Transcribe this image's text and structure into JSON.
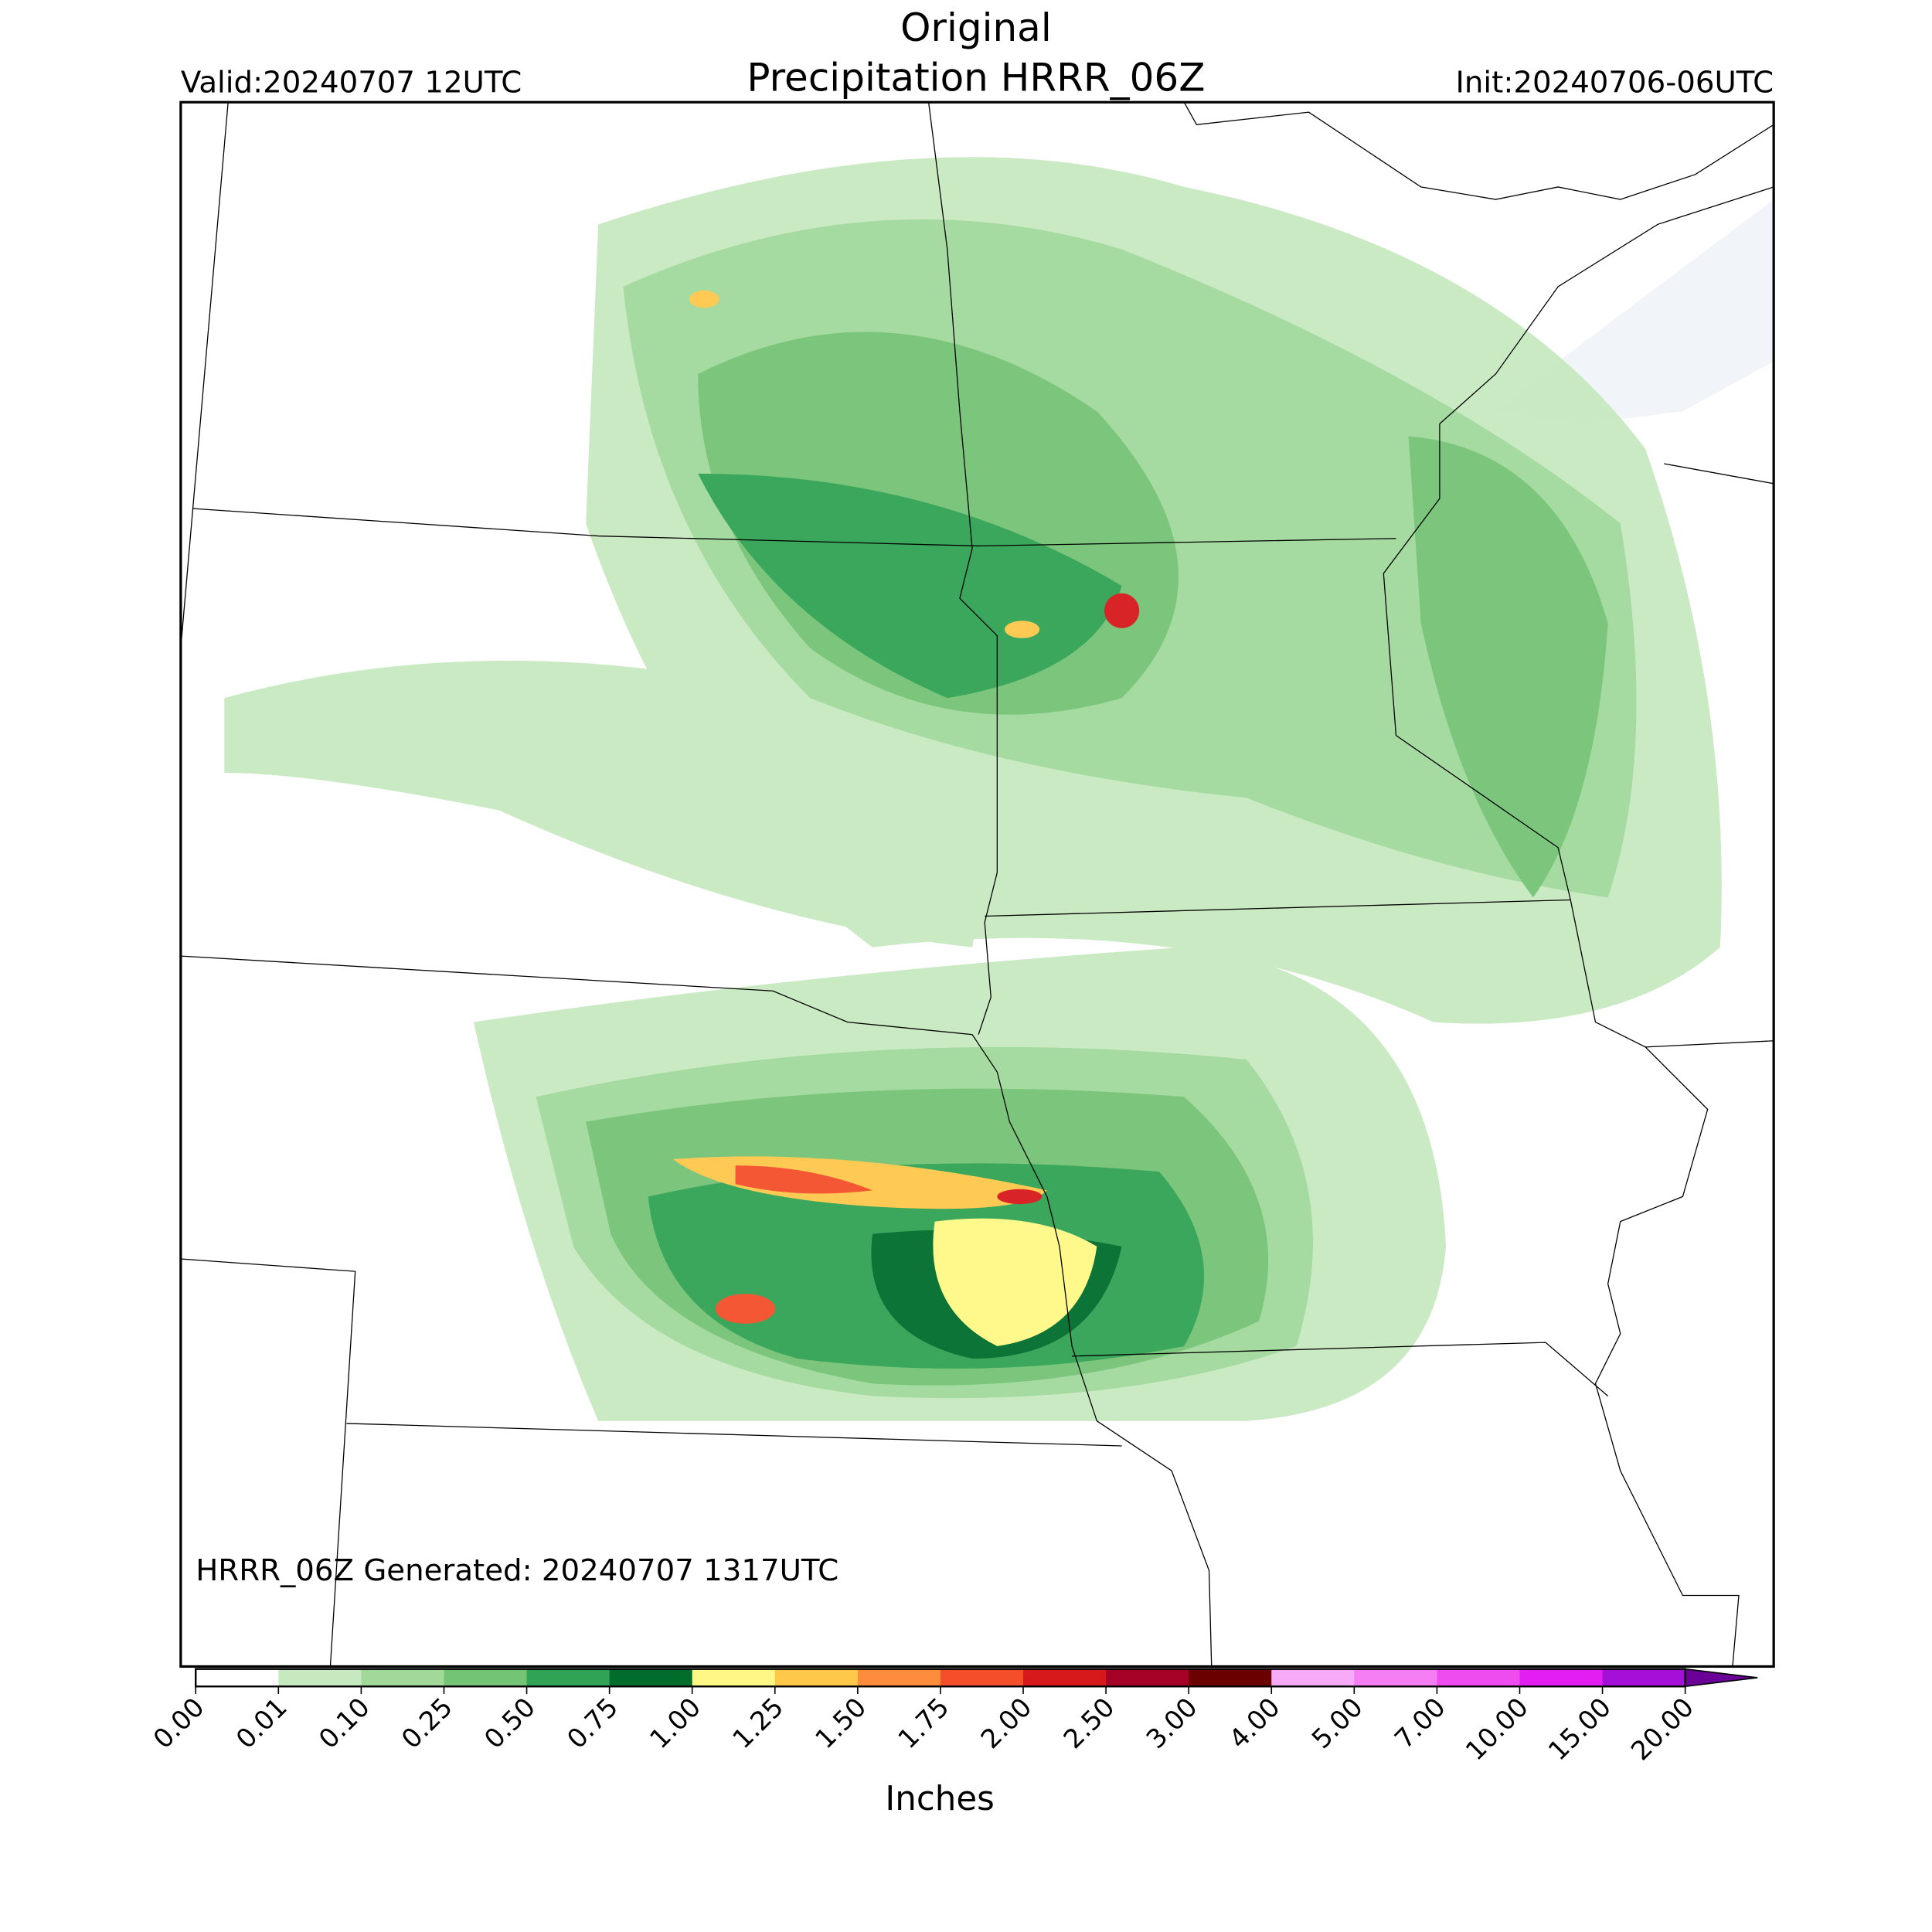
{
  "header": {
    "title": [
      "Original",
      "Precipitation HRRR_06Z"
    ],
    "valid": "Valid:20240707 12UTC",
    "init": "Init:20240706-06UTC"
  },
  "map": {
    "annotation": "HRRR_06Z Generated: 20240707 1317UTC"
  },
  "colorbar": {
    "label": "Inches",
    "ticks": [
      {
        "value": 0,
        "label": "0.00"
      },
      {
        "value": 0.01,
        "label": "0.01"
      },
      {
        "value": 0.1,
        "label": "0.10"
      },
      {
        "value": 0.25,
        "label": "0.25"
      },
      {
        "value": 0.5,
        "label": "0.50"
      },
      {
        "value": 0.75,
        "label": "0.75"
      },
      {
        "value": 1,
        "label": "1.00"
      },
      {
        "value": 1.25,
        "label": "1.25"
      },
      {
        "value": 1.5,
        "label": "1.50"
      },
      {
        "value": 1.75,
        "label": "1.75"
      },
      {
        "value": 2,
        "label": "2.00"
      },
      {
        "value": 2.5,
        "label": "2.50"
      },
      {
        "value": 3,
        "label": "3.00"
      },
      {
        "value": 4,
        "label": "4.00"
      },
      {
        "value": 5,
        "label": "5.00"
      },
      {
        "value": 7,
        "label": "7.00"
      },
      {
        "value": 10,
        "label": "10.00"
      },
      {
        "value": 15,
        "label": "15.00"
      },
      {
        "value": 20,
        "label": "20.00"
      }
    ],
    "colors": [
      "#ffffff",
      "#c7e9c0",
      "#a1d99b",
      "#74c476",
      "#31a354",
      "#006d2c",
      "#fff884",
      "#ffc84a",
      "#fd8c3c",
      "#f44f2a",
      "#d7191c",
      "#a50026",
      "#6b0000",
      "#f7aaf7",
      "#f57ef5",
      "#ef4cef",
      "#e21ef2",
      "#a510d8",
      "#6a0098"
    ],
    "extend": "max"
  }
}
